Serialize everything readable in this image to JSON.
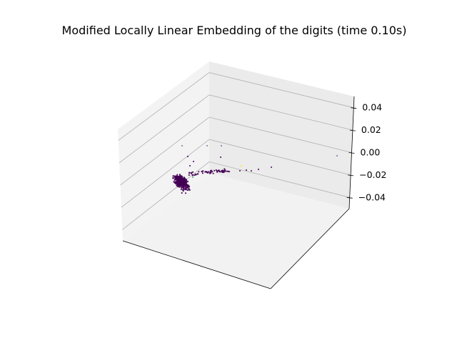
{
  "chart_data": {
    "type": "scatter",
    "projection": "3d",
    "title": "Modified Locally Linear Embedding of the digits (time 0.10s)",
    "xlabel": "",
    "ylabel": "",
    "zlabel": "",
    "z_ticks": [
      "0.04",
      "0.02",
      "0.00",
      "−0.02",
      "−0.04"
    ],
    "z_tick_values": [
      0.04,
      0.02,
      0.0,
      -0.02,
      -0.04
    ],
    "zlim": [
      -0.05,
      0.05
    ],
    "grid": true,
    "colormap": "viridis",
    "points_note_colors": [
      "#440154",
      "#3b528b",
      "#21918c",
      "#5ec962",
      "#fde725"
    ]
  }
}
